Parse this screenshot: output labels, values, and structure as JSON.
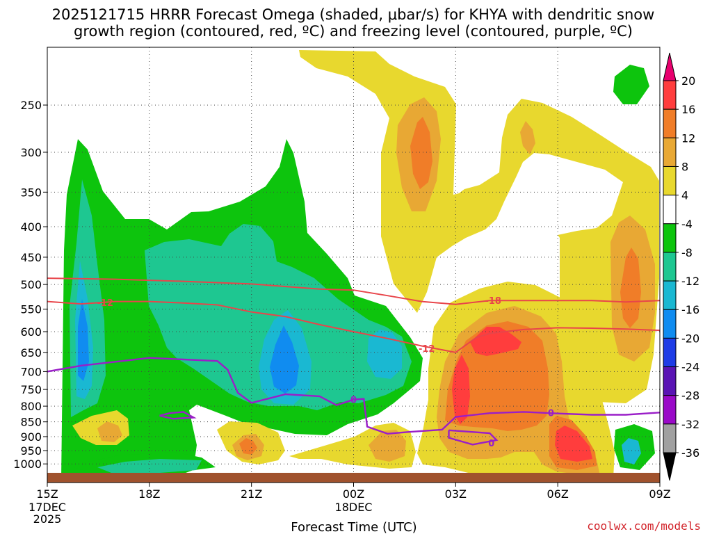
{
  "title_line1": "2025121715 HRRR Forecast Omega (shaded, μbar/s) for KHYA with dendritic snow",
  "title_line2": "growth region (contoured, red, ºC) and freezing level (contoured, purple, ºC)",
  "credit": "coolwx.com/models",
  "chart_data": {
    "type": "heatmap",
    "xlabel": "Forecast Time (UTC)",
    "x_ticks": [
      {
        "hour": 0,
        "label": "15Z"
      },
      {
        "hour": 3,
        "label": "18Z"
      },
      {
        "hour": 6,
        "label": "21Z"
      },
      {
        "hour": 9,
        "label": "00Z"
      },
      {
        "hour": 12,
        "label": "03Z"
      },
      {
        "hour": 15,
        "label": "06Z"
      },
      {
        "hour": 18,
        "label": "09Z"
      }
    ],
    "date_labels": [
      {
        "hour": 0,
        "lines": [
          "17DEC",
          "2025"
        ]
      },
      {
        "hour": 9,
        "lines": [
          "18DEC"
        ]
      }
    ],
    "y_ticks": [
      250,
      300,
      350,
      400,
      450,
      500,
      550,
      600,
      650,
      700,
      750,
      800,
      850,
      900,
      950,
      1000
    ],
    "y_scale": "log-pressure",
    "ylim_hpa": [
      1035,
      200
    ],
    "xlim_hours": [
      0,
      18
    ],
    "colorbar": {
      "labels": [
        "20",
        "16",
        "12",
        "8",
        "4",
        "-4",
        "-8",
        "-12",
        "-16",
        "-20",
        "-24",
        "-28",
        "-32",
        "-36"
      ],
      "colors": [
        "#e8006e",
        "#ff3d3d",
        "#f07d28",
        "#e8a834",
        "#e8d82e",
        "#ffffff",
        "#0dc40d",
        "#1ec791",
        "#1ab8d2",
        "#108cf0",
        "#1e3ce6",
        "#5a14b4",
        "#9a0ac8",
        "#a0a0a0",
        "#000000"
      ]
    },
    "fill_levels": [
      {
        "value": 4,
        "color": "#e8d82e"
      },
      {
        "value": 8,
        "color": "#e8a834"
      },
      {
        "value": 12,
        "color": "#f07d28"
      },
      {
        "value": 16,
        "color": "#ff3d3d"
      },
      {
        "value": -4,
        "color": "#0dc40d"
      },
      {
        "value": -8,
        "color": "#1ec791"
      },
      {
        "value": -12,
        "color": "#1ab8d2"
      },
      {
        "value": -16,
        "color": "#108cf0"
      }
    ],
    "dgz_contours": {
      "color": "#e8454a",
      "labels": [
        "-12",
        "-18",
        "-12"
      ],
      "upper": [
        [
          0,
          488
        ],
        [
          2,
          490
        ],
        [
          4,
          494
        ],
        [
          6,
          499
        ],
        [
          8,
          509
        ],
        [
          9,
          511
        ],
        [
          10,
          522
        ],
        [
          11,
          534
        ],
        [
          12,
          540
        ],
        [
          13,
          532
        ],
        [
          14,
          532
        ],
        [
          15,
          532
        ],
        [
          16,
          532
        ],
        [
          17,
          535
        ],
        [
          18,
          532
        ]
      ],
      "lower": [
        [
          0,
          534
        ],
        [
          1,
          539
        ],
        [
          2,
          534
        ],
        [
          3,
          534
        ],
        [
          4,
          537
        ],
        [
          5,
          541
        ],
        [
          6,
          556
        ],
        [
          7,
          566
        ],
        [
          8,
          584
        ],
        [
          9,
          600
        ],
        [
          10,
          616
        ],
        [
          11,
          634
        ],
        [
          12,
          650
        ],
        [
          12.6,
          614
        ],
        [
          13,
          604
        ],
        [
          14,
          595
        ],
        [
          15,
          591
        ],
        [
          16,
          592
        ],
        [
          17,
          594
        ],
        [
          18,
          597
        ]
      ]
    },
    "freezing_level_contours": {
      "color": "#9a1ec8",
      "label": "0",
      "main": [
        [
          0,
          700
        ],
        [
          1,
          684
        ],
        [
          2,
          674
        ],
        [
          3,
          664
        ],
        [
          4,
          668
        ],
        [
          5,
          672
        ],
        [
          5.3,
          695
        ],
        [
          5.6,
          760
        ],
        [
          6,
          790
        ],
        [
          7,
          764
        ],
        [
          8,
          770
        ],
        [
          8.5,
          797
        ],
        [
          9,
          780
        ],
        [
          9.3,
          778
        ],
        [
          9.4,
          866
        ],
        [
          10,
          890
        ],
        [
          10.6,
          884
        ],
        [
          11.6,
          876
        ],
        [
          12,
          834
        ],
        [
          13,
          822
        ],
        [
          14,
          818
        ],
        [
          15,
          823
        ],
        [
          16,
          827
        ],
        [
          17,
          827
        ],
        [
          18,
          820
        ]
      ],
      "loop_a": [
        [
          11.8,
          878
        ],
        [
          13,
          888
        ],
        [
          13.2,
          912
        ],
        [
          12.5,
          928
        ],
        [
          11.8,
          904
        ],
        [
          11.8,
          878
        ]
      ],
      "loop_b": [
        [
          3.3,
          830
        ],
        [
          3.6,
          822
        ],
        [
          4,
          818
        ],
        [
          4.3,
          836
        ],
        [
          3.7,
          840
        ],
        [
          3.3,
          830
        ]
      ]
    }
  }
}
